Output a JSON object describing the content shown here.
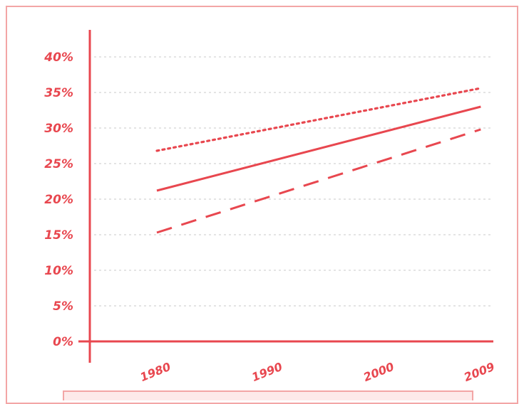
{
  "chart_data": {
    "type": "line",
    "title": "",
    "xlabel": "",
    "ylabel": "",
    "x": [
      1980,
      2009
    ],
    "x_tick_labels": [
      "1980",
      "1990",
      "2000",
      "2009"
    ],
    "x_tick_values": [
      1980,
      1990,
      2000,
      2009
    ],
    "y_tick_labels": [
      "0%",
      "5%",
      "10%",
      "15%",
      "20%",
      "25%",
      "30%",
      "35%",
      "40%"
    ],
    "y_tick_values": [
      0,
      5,
      10,
      15,
      20,
      25,
      30,
      35,
      40
    ],
    "ylim": [
      0,
      40
    ],
    "xlim": [
      1974,
      2010
    ],
    "grid": true,
    "series": [
      {
        "line_style": "dotted",
        "values": [
          26.8,
          35.6
        ]
      },
      {
        "line_style": "solid",
        "values": [
          21.2,
          33.0
        ]
      },
      {
        "line_style": "dashed",
        "values": [
          15.3,
          29.8
        ]
      }
    ],
    "colors": {
      "line": "#e8474f",
      "grid": "#c9c9c9",
      "axis": "#e8474f",
      "frame": "#f3a6a6"
    }
  }
}
